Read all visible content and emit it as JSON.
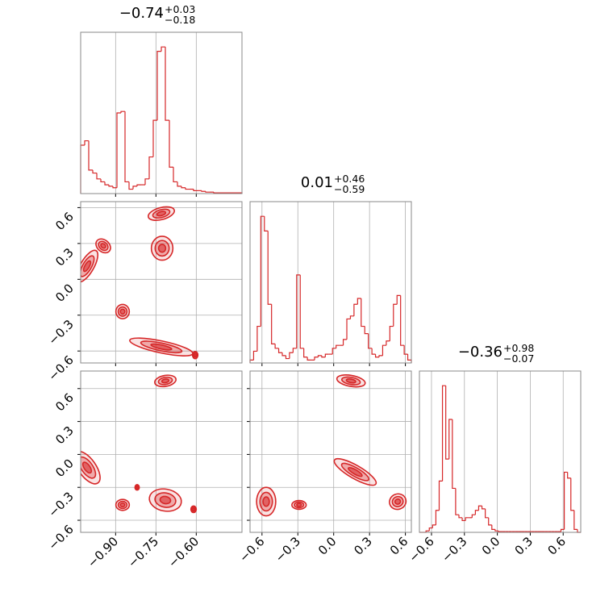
{
  "chart_data": {
    "type": "corner",
    "color": "#d62728",
    "grid": true,
    "hist_ylim": [
      0,
      1.1
    ],
    "params": [
      {
        "title": {
          "value": "−0.74",
          "plus": "+0.03",
          "minus": "−0.18"
        },
        "lim": [
          -1.03,
          -0.43
        ],
        "ticks": [
          {
            "value": -0.9,
            "label": "−0.90"
          },
          {
            "value": -0.75,
            "label": "−0.75"
          },
          {
            "value": -0.6,
            "label": "−0.60"
          }
        ],
        "hist": {
          "bins": [
            -1.03,
            -1.015,
            -1.0,
            -0.985,
            -0.97,
            -0.955,
            -0.94,
            -0.925,
            -0.91,
            -0.895,
            -0.88,
            -0.865,
            -0.85,
            -0.835,
            -0.82,
            -0.805,
            -0.79,
            -0.775,
            -0.76,
            -0.745,
            -0.73,
            -0.715,
            -0.7,
            -0.685,
            -0.67,
            -0.655,
            -0.64,
            -0.625,
            -0.61,
            -0.595,
            -0.58,
            -0.565,
            -0.55,
            -0.535,
            -0.52,
            -0.505,
            -0.49,
            -0.475,
            -0.46,
            -0.445,
            -0.43
          ],
          "counts": [
            0.33,
            0.36,
            0.16,
            0.14,
            0.1,
            0.08,
            0.06,
            0.05,
            0.04,
            0.55,
            0.56,
            0.08,
            0.03,
            0.05,
            0.06,
            0.06,
            0.1,
            0.25,
            0.5,
            0.97,
            1.0,
            0.5,
            0.18,
            0.08,
            0.05,
            0.04,
            0.03,
            0.03,
            0.02,
            0.02,
            0.015,
            0.01,
            0.01,
            0.005,
            0.005,
            0.005,
            0.005,
            0.005,
            0.005,
            0.005
          ]
        }
      },
      {
        "title": {
          "value": "0.01",
          "plus": "+0.46",
          "minus": "−0.59"
        },
        "lim": [
          -0.7,
          0.65
        ],
        "ticks": [
          {
            "value": -0.6,
            "label": "−0.6"
          },
          {
            "value": -0.3,
            "label": "−0.3"
          },
          {
            "value": 0,
            "label": "0.0"
          },
          0.3,
          0.6
        ],
        "hist": {
          "bins": [
            -0.7,
            -0.67,
            -0.64,
            -0.61,
            -0.58,
            -0.55,
            -0.52,
            -0.49,
            -0.46,
            -0.43,
            -0.4,
            -0.37,
            -0.34,
            -0.31,
            -0.28,
            -0.25,
            -0.22,
            -0.19,
            -0.16,
            -0.13,
            -0.1,
            -0.07,
            -0.04,
            -0.01,
            0.02,
            0.05,
            0.08,
            0.11,
            0.14,
            0.17,
            0.2,
            0.23,
            0.26,
            0.29,
            0.32,
            0.35,
            0.38,
            0.41,
            0.44,
            0.47,
            0.5,
            0.53,
            0.56,
            0.59,
            0.62,
            0.65
          ],
          "counts": [
            0.02,
            0.08,
            0.25,
            1.0,
            0.9,
            0.4,
            0.13,
            0.1,
            0.07,
            0.05,
            0.03,
            0.07,
            0.1,
            0.6,
            0.1,
            0.04,
            0.02,
            0.02,
            0.04,
            0.05,
            0.04,
            0.06,
            0.06,
            0.1,
            0.12,
            0.12,
            0.16,
            0.3,
            0.32,
            0.4,
            0.44,
            0.25,
            0.2,
            0.1,
            0.06,
            0.04,
            0.05,
            0.12,
            0.15,
            0.25,
            0.4,
            0.46,
            0.12,
            0.06,
            0.02
          ]
        }
      },
      {
        "title": {
          "value": "−0.36",
          "plus": "+0.98",
          "minus": "−0.07"
        },
        "lim": [
          -0.71,
          0.76
        ],
        "ticks": [
          {
            "value": -0.6,
            "label": "−0.6"
          },
          {
            "value": -0.3,
            "label": "−0.3"
          },
          {
            "value": 0,
            "label": "0.0"
          },
          0.3,
          0.6
        ],
        "hist": {
          "bins": [
            -0.71,
            -0.68,
            -0.65,
            -0.62,
            -0.59,
            -0.56,
            -0.53,
            -0.5,
            -0.47,
            -0.44,
            -0.41,
            -0.38,
            -0.35,
            -0.32,
            -0.29,
            -0.26,
            -0.23,
            -0.2,
            -0.17,
            -0.14,
            -0.11,
            -0.08,
            -0.05,
            -0.02,
            0.01,
            0.04,
            0.07,
            0.1,
            0.13,
            0.16,
            0.19,
            0.22,
            0.25,
            0.28,
            0.31,
            0.34,
            0.37,
            0.4,
            0.43,
            0.46,
            0.49,
            0.52,
            0.55,
            0.58,
            0.61,
            0.64,
            0.67,
            0.7,
            0.73,
            0.76
          ],
          "counts": [
            0,
            0,
            0.01,
            0.03,
            0.05,
            0.15,
            0.35,
            1.0,
            0.5,
            0.77,
            0.3,
            0.12,
            0.1,
            0.08,
            0.1,
            0.1,
            0.12,
            0.15,
            0.18,
            0.16,
            0.1,
            0.05,
            0.02,
            0.01,
            0.005,
            0.005,
            0.005,
            0.005,
            0.005,
            0.005,
            0.005,
            0.005,
            0.005,
            0.005,
            0.005,
            0.005,
            0.005,
            0.005,
            0.005,
            0.005,
            0.005,
            0.005,
            0.005,
            0.02,
            0.41,
            0.37,
            0.15,
            0.02,
            0
          ]
        }
      }
    ],
    "pairs": [
      {
        "x_param": 0,
        "y_param": 1,
        "clusters": [
          {
            "x": -0.73,
            "y": 0.55,
            "rx": 0.05,
            "ry": 0.05,
            "rot": -15
          },
          {
            "x": -0.727,
            "y": 0.26,
            "rx": 0.04,
            "ry": 0.1,
            "rot": 0
          },
          {
            "x": -1.006,
            "y": 0.11,
            "rx": 0.025,
            "ry": 0.15,
            "rot": 30
          },
          {
            "x": -0.946,
            "y": 0.28,
            "rx": 0.03,
            "ry": 0.05,
            "rot": 40
          },
          {
            "x": -0.874,
            "y": -0.27,
            "rx": 0.025,
            "ry": 0.06,
            "rot": 0
          },
          {
            "x": -0.73,
            "y": -0.566,
            "rx": 0.12,
            "ry": 0.05,
            "rot": 12
          },
          {
            "x": -0.604,
            "y": -0.634,
            "rx": 0.01,
            "ry": 0.03,
            "rot": 0
          }
        ]
      },
      {
        "x_param": 0,
        "y_param": 2,
        "clusters": [
          {
            "x": -0.715,
            "y": 0.67,
            "rx": 0.04,
            "ry": 0.05,
            "rot": -10
          },
          {
            "x": -1.006,
            "y": -0.12,
            "rx": 0.07,
            "ry": 0.08,
            "rot": 55
          },
          {
            "x": -0.874,
            "y": -0.46,
            "rx": 0.025,
            "ry": 0.05,
            "rot": 0
          },
          {
            "x": -0.715,
            "y": -0.416,
            "rx": 0.06,
            "ry": 0.1,
            "rot": 10
          },
          {
            "x": -0.61,
            "y": -0.5,
            "rx": 0.01,
            "ry": 0.03,
            "rot": 0
          },
          {
            "x": -0.82,
            "y": -0.3,
            "rx": 0.008,
            "ry": 0.025,
            "rot": 0
          }
        ]
      },
      {
        "x_param": 1,
        "y_param": 2,
        "clusters": [
          {
            "x": 0.145,
            "y": 0.67,
            "rx": 0.12,
            "ry": 0.05,
            "rot": 10
          },
          {
            "x": -0.565,
            "y": -0.43,
            "rx": 0.08,
            "ry": 0.13,
            "rot": 0
          },
          {
            "x": -0.29,
            "y": -0.46,
            "rx": 0.06,
            "ry": 0.04,
            "rot": 0
          },
          {
            "x": 0.18,
            "y": -0.16,
            "rx": 0.2,
            "ry": 0.06,
            "rot": 30
          },
          {
            "x": 0.536,
            "y": -0.43,
            "rx": 0.07,
            "ry": 0.07,
            "rot": -20
          }
        ]
      }
    ]
  }
}
